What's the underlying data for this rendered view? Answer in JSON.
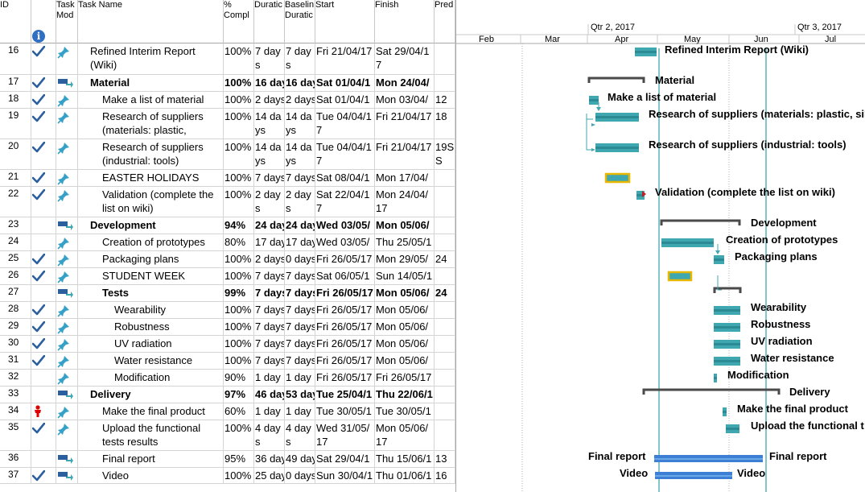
{
  "columns": {
    "id": "ID",
    "indicators": "",
    "task_mode": "Task\nMod",
    "name": "Task Name",
    "pct": "%\nCompl",
    "duration": "Duratic",
    "baseline": "Baselin\nDuratic",
    "start": "Start",
    "finish": "Finish",
    "pred": "Pred"
  },
  "timescale": {
    "quarters": [
      "Qtr 2, 2017",
      "Qtr 3, 2017"
    ],
    "months": [
      "Feb",
      "Mar",
      "Apr",
      "May",
      "Jun",
      "Jul"
    ]
  },
  "rows": [
    {
      "id": "16",
      "check": true,
      "mode": "auto",
      "indent": 1,
      "bold": false,
      "name": "Refined Interim Report (Wiki)",
      "pct": "100%",
      "duration": "7 days",
      "baseline": "7 days",
      "start": "Fri 21/04/17",
      "finish": "Sat 29/04/17",
      "pred": "",
      "bar_label": "Refined Interim Report (Wiki)"
    },
    {
      "id": "17",
      "check": true,
      "mode": "summary",
      "indent": 1,
      "bold": true,
      "name": "Material",
      "pct": "100%",
      "duration": "16 day",
      "baseline": "16 day",
      "start": "Sat 01/04/1",
      "finish": "Mon 24/04/",
      "pred": "",
      "bar_label": "Material"
    },
    {
      "id": "18",
      "check": true,
      "mode": "auto",
      "indent": 2,
      "bold": false,
      "name": "Make a list of material",
      "pct": "100%",
      "duration": "2 days",
      "baseline": "2 days",
      "start": "Sat 01/04/1",
      "finish": "Mon 03/04/",
      "pred": "12",
      "bar_label": "Make a list of material"
    },
    {
      "id": "19",
      "check": true,
      "mode": "auto",
      "indent": 2,
      "bold": false,
      "name": "Research of suppliers (materials: plastic,",
      "pct": "100%",
      "duration": "14 days",
      "baseline": "14 days",
      "start": "Tue 04/04/17",
      "finish": "Fri 21/04/17",
      "pred": "18",
      "bar_label": "Research of suppliers (materials: plastic, sili"
    },
    {
      "id": "20",
      "check": true,
      "mode": "auto",
      "indent": 2,
      "bold": false,
      "name": "Research of suppliers (industrial: tools)",
      "pct": "100%",
      "duration": "14 days",
      "baseline": "14 days",
      "start": "Tue 04/04/17",
      "finish": "Fri 21/04/17",
      "pred": "19SS",
      "bar_label": "Research of suppliers (industrial: tools)"
    },
    {
      "id": "21",
      "check": true,
      "mode": "auto",
      "indent": 2,
      "bold": false,
      "name": "EASTER HOLIDAYS",
      "pct": "100%",
      "duration": "7 days",
      "baseline": "7 days",
      "start": "Sat 08/04/1",
      "finish": "Mon 17/04/",
      "pred": "",
      "bar_label": ""
    },
    {
      "id": "22",
      "check": true,
      "mode": "auto",
      "indent": 2,
      "bold": false,
      "name": "Validation (complete the list on wiki)",
      "pct": "100%",
      "duration": "2 days",
      "baseline": "2 days",
      "start": "Sat 22/04/17",
      "finish": "Mon 24/04/17",
      "pred": "",
      "bar_label": "Validation (complete the list on wiki)"
    },
    {
      "id": "23",
      "check": false,
      "mode": "summary",
      "indent": 1,
      "bold": true,
      "name": "Development",
      "pct": "94%",
      "duration": "24 day",
      "baseline": "24 day",
      "start": "Wed 03/05/",
      "finish": "Mon 05/06/",
      "pred": "",
      "bar_label": "Development"
    },
    {
      "id": "24",
      "check": false,
      "mode": "auto",
      "indent": 2,
      "bold": false,
      "name": "Creation of prototypes",
      "pct": "80%",
      "duration": "17 day",
      "baseline": "17 day",
      "start": "Wed 03/05/",
      "finish": "Thu 25/05/1",
      "pred": "",
      "bar_label": "Creation of prototypes"
    },
    {
      "id": "25",
      "check": true,
      "mode": "auto",
      "indent": 2,
      "bold": false,
      "name": "Packaging plans",
      "pct": "100%",
      "duration": "2 days",
      "baseline": "0 days",
      "start": "Fri 26/05/17",
      "finish": "Mon 29/05/",
      "pred": "24",
      "bar_label": "Packaging plans"
    },
    {
      "id": "26",
      "check": true,
      "mode": "auto",
      "indent": 2,
      "bold": false,
      "name": "STUDENT WEEK",
      "pct": "100%",
      "duration": "7 days",
      "baseline": "7 days",
      "start": "Sat 06/05/1",
      "finish": "Sun 14/05/1",
      "pred": "",
      "bar_label": ""
    },
    {
      "id": "27",
      "check": false,
      "mode": "summary",
      "indent": 2,
      "bold": true,
      "name": "Tests",
      "pct": "99%",
      "duration": "7 days",
      "baseline": "7 days",
      "start": "Fri 26/05/17",
      "finish": "Mon 05/06/",
      "pred": "24",
      "bar_label": ""
    },
    {
      "id": "28",
      "check": true,
      "mode": "auto",
      "indent": 3,
      "bold": false,
      "name": "Wearability",
      "pct": "100%",
      "duration": "7 days",
      "baseline": "7 days",
      "start": "Fri 26/05/17",
      "finish": "Mon 05/06/",
      "pred": "",
      "bar_label": "Wearability"
    },
    {
      "id": "29",
      "check": true,
      "mode": "auto",
      "indent": 3,
      "bold": false,
      "name": "Robustness",
      "pct": "100%",
      "duration": "7 days",
      "baseline": "7 days",
      "start": "Fri 26/05/17",
      "finish": "Mon 05/06/",
      "pred": "",
      "bar_label": "Robustness"
    },
    {
      "id": "30",
      "check": true,
      "mode": "auto",
      "indent": 3,
      "bold": false,
      "name": "UV radiation",
      "pct": "100%",
      "duration": "7 days",
      "baseline": "7 days",
      "start": "Fri 26/05/17",
      "finish": "Mon 05/06/",
      "pred": "",
      "bar_label": "UV radiation"
    },
    {
      "id": "31",
      "check": true,
      "mode": "auto",
      "indent": 3,
      "bold": false,
      "name": "Water resistance",
      "pct": "100%",
      "duration": "7 days",
      "baseline": "7 days",
      "start": "Fri 26/05/17",
      "finish": "Mon 05/06/",
      "pred": "",
      "bar_label": "Water resistance"
    },
    {
      "id": "32",
      "check": false,
      "mode": "auto",
      "indent": 3,
      "bold": false,
      "name": "Modification",
      "pct": "90%",
      "duration": "1 day",
      "baseline": "1 day",
      "start": "Fri 26/05/17",
      "finish": "Fri 26/05/17",
      "pred": "",
      "bar_label": "Modification"
    },
    {
      "id": "33",
      "check": false,
      "mode": "summary",
      "indent": 1,
      "bold": true,
      "name": "Delivery",
      "pct": "97%",
      "duration": "46 day",
      "baseline": "53 day",
      "start": "Tue 25/04/1",
      "finish": "Thu 22/06/1",
      "pred": "",
      "bar_label": "Delivery"
    },
    {
      "id": "34",
      "check": false,
      "person": true,
      "mode": "auto",
      "indent": 2,
      "bold": false,
      "name": "Make the final product",
      "pct": "60%",
      "duration": "1 day",
      "baseline": "1 day",
      "start": "Tue 30/05/1",
      "finish": "Tue 30/05/1",
      "pred": "",
      "bar_label": "Make the final product"
    },
    {
      "id": "35",
      "check": true,
      "mode": "auto",
      "indent": 2,
      "bold": false,
      "name": "Upload the functional tests results",
      "pct": "100%",
      "duration": "4 days",
      "baseline": "4 days",
      "start": "Wed 31/05/17",
      "finish": "Mon 05/06/17",
      "pred": "",
      "bar_label": "Upload the functional t"
    },
    {
      "id": "36",
      "check": false,
      "mode": "summary_link",
      "indent": 2,
      "bold": false,
      "name": "Final report",
      "pct": "95%",
      "duration": "36 day",
      "baseline": "49 day",
      "start": "Sat 29/04/1",
      "finish": "Thu 15/06/1",
      "pred": "13",
      "bar_label": "Final report"
    },
    {
      "id": "37",
      "check": true,
      "mode": "summary_link",
      "indent": 2,
      "bold": false,
      "name": "Video",
      "pct": "100%",
      "duration": "25 day",
      "baseline": "0 days",
      "start": "Sun 30/04/1",
      "finish": "Thu 01/06/1",
      "pred": "16",
      "bar_label": "Video"
    }
  ],
  "colors": {
    "task_bar": "#3fa7b0",
    "task_bar_dark": "#2b8a93",
    "summary_bracket": "#4a4a4a",
    "holiday_fill": "#3fa7b0",
    "holiday_border": "#e8b800",
    "grid_line": "#d4d4d4",
    "check": "#2c5f9e",
    "task_icon": "#35a0c8",
    "person": "#e00000",
    "blue_bar": "#3d7fd4",
    "deadline": "#3fa7b0"
  }
}
